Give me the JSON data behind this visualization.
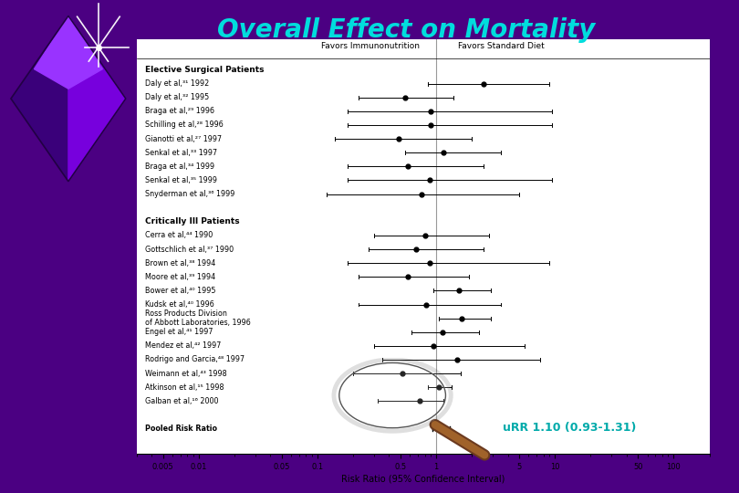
{
  "title": "Overall Effect on Mortality",
  "title_color": "#00DDDD",
  "title_fontsize": 20,
  "bg_color": "#4B0082",
  "panel_bg": "#FFFFFF",
  "rr_annotation": "uRR 1.10 (0.93-1.31)",
  "rr_annotation_color": "#00AAAA",
  "xlabel": "Risk Ratio (95% Confidence Interval)",
  "header_left": "Favors Immunonutrition",
  "header_right": "Favors Standard Diet",
  "x_ticks": [
    0.005,
    0.01,
    0.05,
    0.1,
    0.5,
    1,
    5,
    10,
    50,
    100
  ],
  "x_tick_labels": [
    "0.005",
    "0.01",
    "0.05",
    "0.1",
    "0.5",
    "1",
    "5",
    "10",
    "50",
    "100"
  ],
  "studies": [
    {
      "label": "Elective Surgical Patients",
      "rr": null,
      "lo": null,
      "hi": null,
      "bold": true,
      "group_header": true,
      "pooled": false
    },
    {
      "label": "Daly et al,³¹ 1992",
      "rr": 2.5,
      "lo": 0.85,
      "hi": 9.0,
      "bold": false,
      "group_header": false,
      "pooled": false
    },
    {
      "label": "Daly et al,³² 1995",
      "rr": 0.55,
      "lo": 0.22,
      "hi": 1.4,
      "bold": false,
      "group_header": false,
      "pooled": false
    },
    {
      "label": "Braga et al,²⁹ 1996",
      "rr": 0.9,
      "lo": 0.18,
      "hi": 9.5,
      "bold": false,
      "group_header": false,
      "pooled": false
    },
    {
      "label": "Schilling et al,²⁸ 1996",
      "rr": 0.9,
      "lo": 0.18,
      "hi": 9.5,
      "bold": false,
      "group_header": false,
      "pooled": false
    },
    {
      "label": "Gianotti et al,²⁷ 1997",
      "rr": 0.48,
      "lo": 0.14,
      "hi": 2.0,
      "bold": false,
      "group_header": false,
      "pooled": false
    },
    {
      "label": "Senkal et al,³³ 1997",
      "rr": 1.15,
      "lo": 0.55,
      "hi": 3.5,
      "bold": false,
      "group_header": false,
      "pooled": false
    },
    {
      "label": "Braga et al,³⁴ 1999",
      "rr": 0.58,
      "lo": 0.18,
      "hi": 2.5,
      "bold": false,
      "group_header": false,
      "pooled": false
    },
    {
      "label": "Senkal et al,³⁵ 1999",
      "rr": 0.88,
      "lo": 0.18,
      "hi": 9.5,
      "bold": false,
      "group_header": false,
      "pooled": false
    },
    {
      "label": "Snyderman et al,³⁶ 1999",
      "rr": 0.75,
      "lo": 0.12,
      "hi": 5.0,
      "bold": false,
      "group_header": false,
      "pooled": false
    },
    {
      "label": "",
      "rr": null,
      "lo": null,
      "hi": null,
      "bold": false,
      "group_header": false,
      "pooled": false
    },
    {
      "label": "Critically Ill Patients",
      "rr": null,
      "lo": null,
      "hi": null,
      "bold": true,
      "group_header": true,
      "pooled": false
    },
    {
      "label": "Cerra et al,⁴⁴ 1990",
      "rr": 0.8,
      "lo": 0.3,
      "hi": 2.8,
      "bold": false,
      "group_header": false,
      "pooled": false
    },
    {
      "label": "Gottschlich et al,³⁷ 1990",
      "rr": 0.68,
      "lo": 0.27,
      "hi": 2.5,
      "bold": false,
      "group_header": false,
      "pooled": false
    },
    {
      "label": "Brown et al,³⁸ 1994",
      "rr": 0.88,
      "lo": 0.18,
      "hi": 9.0,
      "bold": false,
      "group_header": false,
      "pooled": false
    },
    {
      "label": "Moore et al,³⁹ 1994",
      "rr": 0.58,
      "lo": 0.22,
      "hi": 1.9,
      "bold": false,
      "group_header": false,
      "pooled": false
    },
    {
      "label": "Bower et al,⁴⁰ 1995",
      "rr": 1.55,
      "lo": 0.95,
      "hi": 2.9,
      "bold": false,
      "group_header": false,
      "pooled": false
    },
    {
      "label": "Kudsk et al,⁴⁰ 1996",
      "rr": 0.82,
      "lo": 0.22,
      "hi": 3.5,
      "bold": false,
      "group_header": false,
      "pooled": false
    },
    {
      "label": "Ross Products Division\nof Abbott Laboratories, 1996",
      "rr": 1.65,
      "lo": 1.05,
      "hi": 2.9,
      "bold": false,
      "group_header": false,
      "pooled": false
    },
    {
      "label": "Engel et al,⁴¹ 1997",
      "rr": 1.12,
      "lo": 0.62,
      "hi": 2.3,
      "bold": false,
      "group_header": false,
      "pooled": false
    },
    {
      "label": "Mendez et al,⁴² 1997",
      "rr": 0.95,
      "lo": 0.3,
      "hi": 5.5,
      "bold": false,
      "group_header": false,
      "pooled": false
    },
    {
      "label": "Rodrigo and Garcia,⁴⁸ 1997",
      "rr": 1.5,
      "lo": 0.35,
      "hi": 7.5,
      "bold": false,
      "group_header": false,
      "pooled": false
    },
    {
      "label": "Weimann et al,⁴³ 1998",
      "rr": 0.52,
      "lo": 0.2,
      "hi": 1.6,
      "bold": false,
      "group_header": false,
      "pooled": false
    },
    {
      "label": "Atkinson et al,¹⁵ 1998",
      "rr": 1.05,
      "lo": 0.85,
      "hi": 1.35,
      "bold": false,
      "group_header": false,
      "pooled": false
    },
    {
      "label": "Galban et al,¹⁶ 2000",
      "rr": 0.72,
      "lo": 0.32,
      "hi": 1.15,
      "bold": false,
      "group_header": false,
      "pooled": false
    },
    {
      "label": "",
      "rr": null,
      "lo": null,
      "hi": null,
      "bold": false,
      "group_header": false,
      "pooled": false
    },
    {
      "label": "Pooled Risk Ratio",
      "rr": 1.1,
      "lo": 0.93,
      "hi": 1.31,
      "bold": true,
      "group_header": false,
      "pooled": true
    }
  ]
}
